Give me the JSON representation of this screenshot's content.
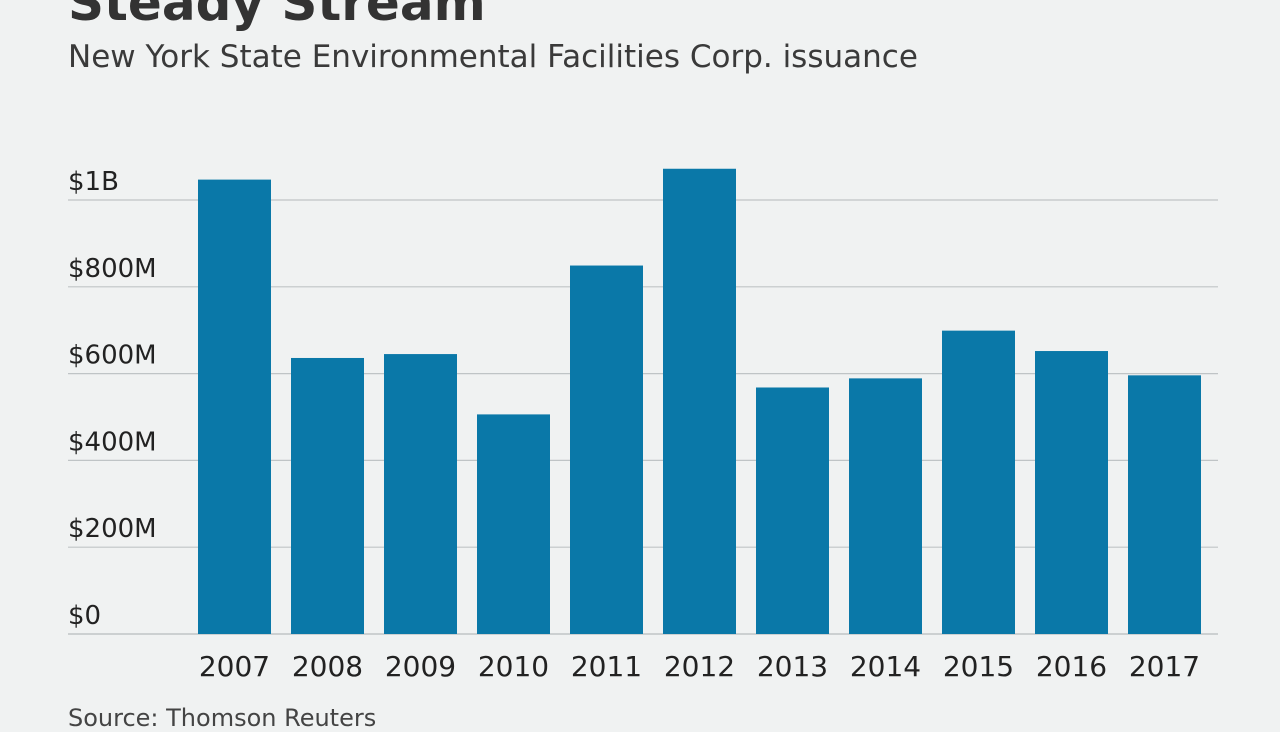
{
  "chart_data": {
    "type": "bar",
    "title": "Steady Stream",
    "subtitle": "New York State Environmental Facilities Corp. issuance",
    "source": "Source: Thomson Reuters",
    "xlabel": "",
    "ylabel": "",
    "categories": [
      "2007",
      "2008",
      "2009",
      "2010",
      "2011",
      "2012",
      "2013",
      "2014",
      "2015",
      "2016",
      "2017"
    ],
    "values": [
      1047,
      636,
      645,
      506,
      849,
      1072,
      568,
      589,
      699,
      652,
      596
    ],
    "units": "$M",
    "ylim": [
      0,
      1000
    ],
    "yticks": [
      {
        "value": 0,
        "label": "$0"
      },
      {
        "value": 200,
        "label": "$200M"
      },
      {
        "value": 400,
        "label": "$400M"
      },
      {
        "value": 600,
        "label": "$600M"
      },
      {
        "value": 800,
        "label": "$800M"
      },
      {
        "value": 1000,
        "label": "$1B"
      }
    ],
    "grid": true,
    "bar_color": "#0a78a8",
    "grid_color": "#bfc4c6"
  }
}
